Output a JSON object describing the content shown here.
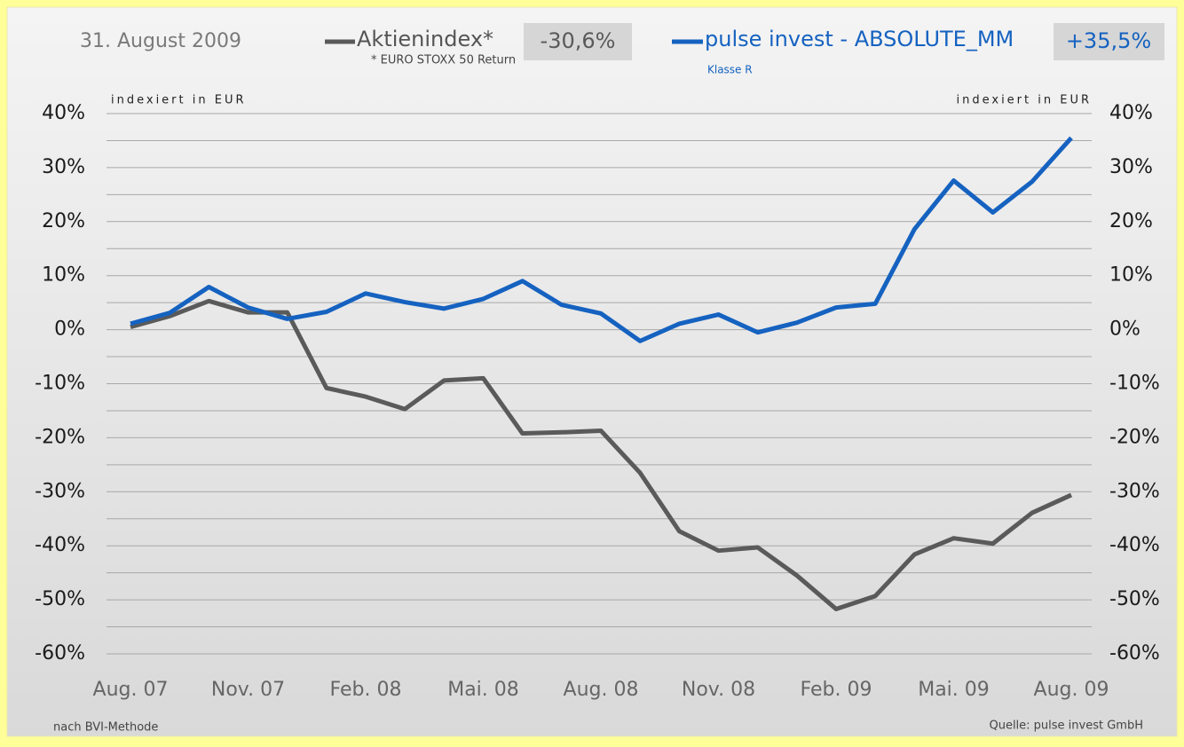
{
  "chart_data": {
    "type": "line",
    "date": "31. August 2009",
    "ylabel": "indexiert in EUR",
    "y2label": "indexiert in EUR",
    "footnote": "nach BVI-Methode",
    "source": "Quelle: pulse invest GmbH",
    "categories": [
      "Aug. 07",
      null,
      null,
      "Nov. 07",
      null,
      null,
      "Feb. 08",
      null,
      null,
      "Mai. 08",
      null,
      null,
      "Aug. 08",
      null,
      null,
      "Nov. 08",
      null,
      null,
      "Feb. 09",
      null,
      null,
      "Mai. 09",
      null,
      null,
      "Aug. 09"
    ],
    "series": [
      {
        "name": "Aktienindex*",
        "note": "* EURO STOXX 50 Return",
        "color": "#5a5a5a",
        "values": [
          0.5,
          2.5,
          5.3,
          3.2,
          3.2,
          -10.8,
          -12.4,
          -14.7,
          -9.4,
          -9.0,
          -19.2,
          -19.0,
          -18.7,
          -26.5,
          -37.3,
          -40.9,
          -40.3,
          -45.5,
          -51.7,
          -49.3,
          -41.6,
          -38.6,
          -39.6,
          -33.9,
          -30.6
        ],
        "value_labels": [
          null,
          null,
          null,
          null,
          null,
          null,
          null,
          null,
          null,
          null,
          null,
          null,
          null,
          null,
          null,
          null,
          null,
          null,
          null,
          null,
          null,
          null,
          null,
          null,
          "-30,6%"
        ]
      },
      {
        "name": "pulse invest - ABSOLUTE_MM",
        "note": "Klasse R",
        "color": "#1562c0",
        "values": [
          1.1,
          3.1,
          7.9,
          4.1,
          2.0,
          3.3,
          6.7,
          5.1,
          3.9,
          5.7,
          9.0,
          4.6,
          3.0,
          -2.1,
          1.1,
          2.8,
          -0.5,
          1.3,
          4.1,
          4.8,
          18.6,
          27.6,
          21.7,
          27.4,
          35.5
        ],
        "value_labels": [
          null,
          null,
          null,
          null,
          null,
          null,
          null,
          null,
          null,
          null,
          null,
          null,
          null,
          null,
          null,
          null,
          null,
          null,
          null,
          null,
          null,
          null,
          null,
          null,
          "+35,5%"
        ]
      }
    ],
    "ylim": [
      -60,
      40
    ],
    "yticks": [
      {
        "value": 40,
        "label": "40%"
      },
      {
        "value": 30,
        "label": "30%"
      },
      {
        "value": 20,
        "label": "20%"
      },
      {
        "value": 10,
        "label": "10%"
      },
      {
        "value": 0,
        "label": "0%"
      },
      {
        "value": -10,
        "label": "-10%"
      },
      {
        "value": -20,
        "label": "-20%"
      },
      {
        "value": -30,
        "label": "-30%"
      },
      {
        "value": -40,
        "label": "-40%"
      },
      {
        "value": -50,
        "label": "-50%"
      },
      {
        "value": -60,
        "label": "-60%"
      }
    ],
    "y2lim": [
      -60,
      40
    ],
    "y2ticks": [
      {
        "value": 40,
        "label": "40%"
      },
      {
        "value": 30,
        "label": "30%"
      },
      {
        "value": 20,
        "label": "20%"
      },
      {
        "value": 10,
        "label": "10%"
      },
      {
        "value": 0,
        "label": "0%"
      },
      {
        "value": -10,
        "label": "-10%"
      },
      {
        "value": -20,
        "label": "-20%"
      },
      {
        "value": -30,
        "label": "-30%"
      },
      {
        "value": -40,
        "label": "-40%"
      },
      {
        "value": -50,
        "label": "-50%"
      },
      {
        "value": -60,
        "label": "-60%"
      }
    ],
    "grid_lines": [
      40,
      35,
      30,
      25,
      20,
      15,
      10,
      5,
      0,
      -5,
      -10,
      -15,
      -20,
      -25,
      -30,
      -35,
      -40,
      -45,
      -50,
      -55,
      -60
    ],
    "grid": true
  }
}
